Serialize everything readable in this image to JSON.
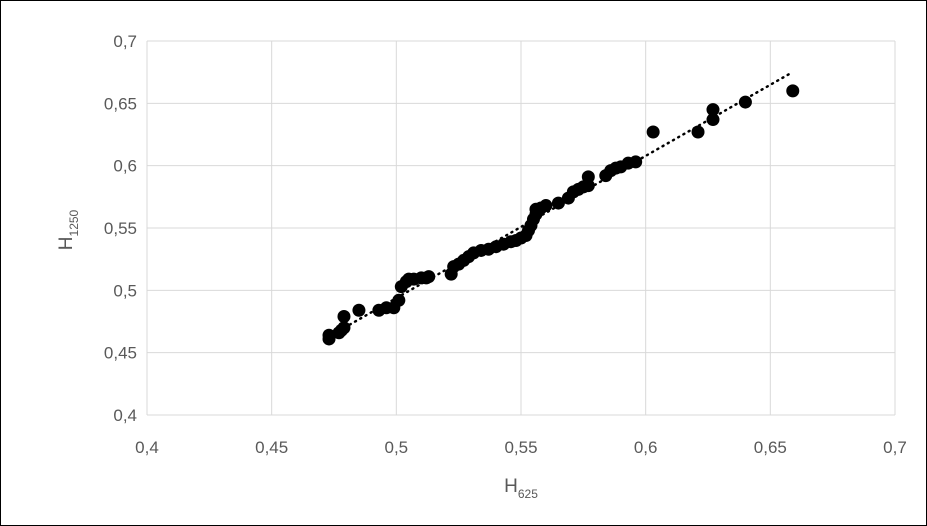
{
  "chart_data": {
    "type": "scatter",
    "xlabel": "H625",
    "xlabel_main": "H",
    "xlabel_sub": "625",
    "ylabel": "H1250",
    "ylabel_main": "H",
    "ylabel_sub": "1250",
    "xlim": [
      0.4,
      0.7
    ],
    "ylim": [
      0.4,
      0.7
    ],
    "xticks": [
      0.4,
      0.45,
      0.5,
      0.55,
      0.6,
      0.65,
      0.7
    ],
    "yticks": [
      0.4,
      0.45,
      0.5,
      0.55,
      0.6,
      0.65,
      0.7
    ],
    "xtick_labels": [
      "0,4",
      "0,45",
      "0,5",
      "0,55",
      "0,6",
      "0,65",
      "0,7"
    ],
    "ytick_labels": [
      "0,4",
      "0,45",
      "0,5",
      "0,55",
      "0,6",
      "0,65",
      "0,7"
    ],
    "grid": true,
    "legend": "none",
    "marker_color": "#000000",
    "trendline": {
      "type": "dotted",
      "color": "#000000",
      "x": [
        0.473,
        0.658
      ],
      "y": [
        0.463,
        0.674
      ]
    },
    "series": [
      {
        "points": [
          [
            0.473,
            0.461
          ],
          [
            0.473,
            0.464
          ],
          [
            0.477,
            0.466
          ],
          [
            0.478,
            0.468
          ],
          [
            0.479,
            0.47
          ],
          [
            0.479,
            0.479
          ],
          [
            0.485,
            0.484
          ],
          [
            0.493,
            0.484
          ],
          [
            0.496,
            0.486
          ],
          [
            0.499,
            0.486
          ],
          [
            0.501,
            0.492
          ],
          [
            0.502,
            0.503
          ],
          [
            0.504,
            0.507
          ],
          [
            0.505,
            0.509
          ],
          [
            0.507,
            0.509
          ],
          [
            0.51,
            0.51
          ],
          [
            0.512,
            0.51
          ],
          [
            0.513,
            0.511
          ],
          [
            0.522,
            0.513
          ],
          [
            0.523,
            0.519
          ],
          [
            0.525,
            0.521
          ],
          [
            0.527,
            0.524
          ],
          [
            0.529,
            0.527
          ],
          [
            0.531,
            0.53
          ],
          [
            0.534,
            0.532
          ],
          [
            0.537,
            0.533
          ],
          [
            0.54,
            0.535
          ],
          [
            0.543,
            0.537
          ],
          [
            0.546,
            0.539
          ],
          [
            0.548,
            0.54
          ],
          [
            0.55,
            0.542
          ],
          [
            0.552,
            0.544
          ],
          [
            0.553,
            0.548
          ],
          [
            0.554,
            0.552
          ],
          [
            0.555,
            0.557
          ],
          [
            0.556,
            0.561
          ],
          [
            0.556,
            0.565
          ],
          [
            0.558,
            0.566
          ],
          [
            0.56,
            0.568
          ],
          [
            0.565,
            0.57
          ],
          [
            0.569,
            0.574
          ],
          [
            0.571,
            0.579
          ],
          [
            0.573,
            0.581
          ],
          [
            0.575,
            0.583
          ],
          [
            0.577,
            0.584
          ],
          [
            0.577,
            0.591
          ],
          [
            0.584,
            0.592
          ],
          [
            0.586,
            0.596
          ],
          [
            0.588,
            0.598
          ],
          [
            0.59,
            0.599
          ],
          [
            0.593,
            0.602
          ],
          [
            0.596,
            0.603
          ],
          [
            0.603,
            0.627
          ],
          [
            0.621,
            0.627
          ],
          [
            0.627,
            0.637
          ],
          [
            0.627,
            0.645
          ],
          [
            0.64,
            0.651
          ],
          [
            0.659,
            0.66
          ]
        ]
      }
    ]
  }
}
